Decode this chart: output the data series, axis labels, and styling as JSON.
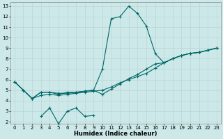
{
  "xlabel": "Humidex (Indice chaleur)",
  "bg_color": "#cce8e8",
  "grid_color": "#b8d4d4",
  "line_color": "#006868",
  "xlim": [
    -0.5,
    23.5
  ],
  "ylim": [
    1.8,
    13.4
  ],
  "xticks": [
    0,
    1,
    2,
    3,
    4,
    5,
    6,
    7,
    8,
    9,
    10,
    11,
    12,
    13,
    14,
    15,
    16,
    17,
    18,
    19,
    20,
    21,
    22,
    23
  ],
  "yticks": [
    2,
    3,
    4,
    5,
    6,
    7,
    8,
    9,
    10,
    11,
    12,
    13
  ],
  "line1_x": [
    0,
    1,
    2,
    3,
    4,
    5,
    6,
    7,
    8,
    9,
    10,
    11,
    12,
    13,
    14,
    15,
    16,
    17,
    18,
    19,
    20,
    21,
    22,
    23
  ],
  "line1_y": [
    5.8,
    5.0,
    4.2,
    4.8,
    4.8,
    4.7,
    4.7,
    4.8,
    4.9,
    5.0,
    7.0,
    11.8,
    12.0,
    13.0,
    12.3,
    11.1,
    8.5,
    7.6,
    8.0,
    8.3,
    8.5,
    8.6,
    8.8,
    9.0
  ],
  "line2_x": [
    0,
    1,
    2,
    3,
    4,
    5,
    6,
    7,
    8,
    9,
    10,
    11,
    12,
    13,
    14,
    15,
    16,
    17,
    18,
    19,
    20,
    21,
    22,
    23
  ],
  "line2_y": [
    5.8,
    5.0,
    4.2,
    4.8,
    4.8,
    4.6,
    4.8,
    4.8,
    4.9,
    5.0,
    4.6,
    5.1,
    5.6,
    6.1,
    6.5,
    7.0,
    7.5,
    7.6,
    8.0,
    8.3,
    8.5,
    8.6,
    8.8,
    9.0
  ],
  "line3_x": [
    0,
    1,
    2,
    3,
    4,
    5,
    6,
    7,
    8,
    9,
    10,
    11,
    12,
    13,
    14,
    15,
    16,
    17,
    18,
    19,
    20,
    21,
    22,
    23
  ],
  "line3_y": [
    5.8,
    5.0,
    4.2,
    4.5,
    4.6,
    4.5,
    4.6,
    4.7,
    4.8,
    4.9,
    5.0,
    5.3,
    5.7,
    6.0,
    6.3,
    6.6,
    7.1,
    7.6,
    8.0,
    8.3,
    8.5,
    8.6,
    8.8,
    9.0
  ],
  "line4_x": [
    3,
    4,
    5,
    6,
    7,
    8,
    9
  ],
  "line4_y": [
    2.5,
    3.3,
    1.8,
    3.0,
    3.3,
    2.5,
    2.6
  ],
  "xlabel_fontsize": 6,
  "tick_fontsize": 5
}
